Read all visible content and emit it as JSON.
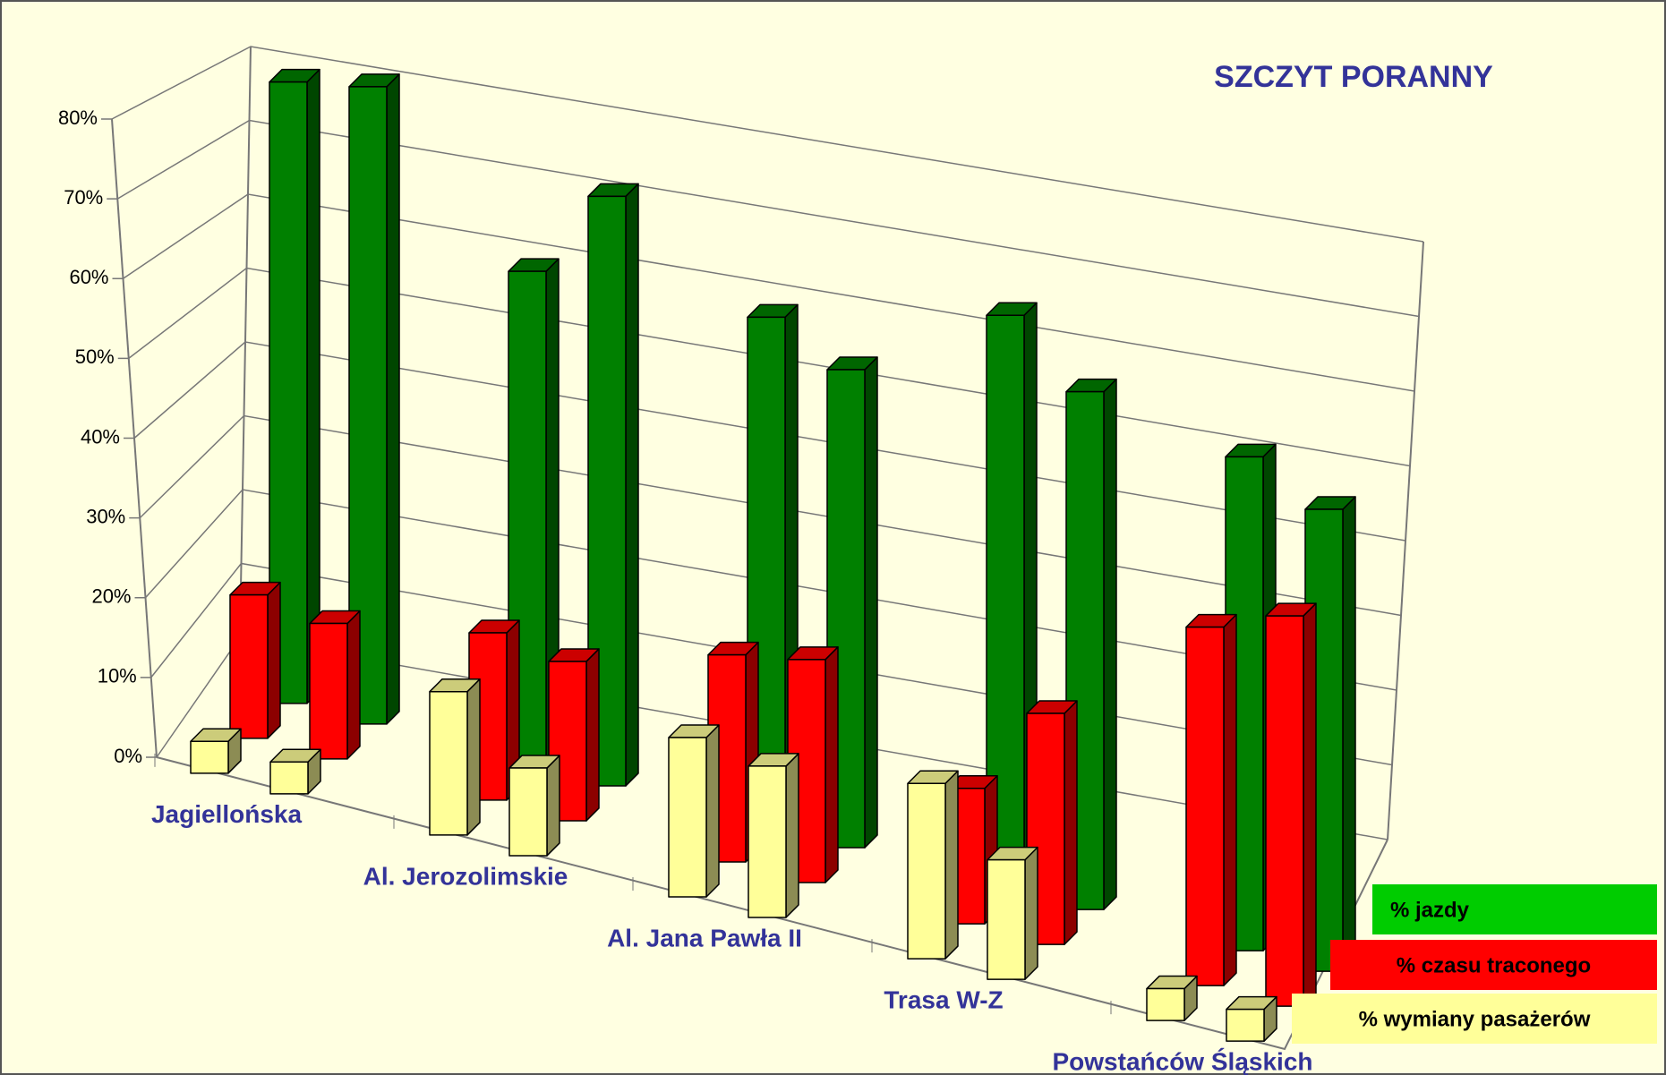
{
  "chart_data": {
    "type": "bar3d",
    "title": "SZCZYT PORANNY",
    "categories": [
      "Jagiellońska",
      null,
      "Al. Jerozolimskie",
      null,
      "Al. Jana Pawła II",
      null,
      "Trasa W-Z",
      null,
      "Powstańców Śląskich",
      null
    ],
    "series": [
      {
        "name": "% jazdy",
        "color": "#008000",
        "values": [
          78,
          80,
          62,
          74,
          64,
          60,
          72,
          65,
          62,
          58
        ]
      },
      {
        "name": "% czasu traconego",
        "color": "#ff0000",
        "values": [
          18,
          17,
          21,
          20,
          26,
          28,
          17,
          29,
          45,
          49
        ]
      },
      {
        "name": "% wymiany pasażerów",
        "color": "#ffff99",
        "values": [
          4,
          4,
          18,
          11,
          20,
          19,
          22,
          15,
          4,
          4
        ]
      }
    ],
    "ylim": [
      0,
      80
    ],
    "yticks": [
      {
        "value": 0,
        "label": "0%"
      },
      {
        "value": 10,
        "label": "10%"
      },
      {
        "value": 20,
        "label": "20%"
      },
      {
        "value": 30,
        "label": "30%"
      },
      {
        "value": 40,
        "label": "40%"
      },
      {
        "value": 50,
        "label": "50%"
      },
      {
        "value": 60,
        "label": "60%"
      },
      {
        "value": 70,
        "label": "70%"
      },
      {
        "value": 80,
        "label": "80%"
      }
    ],
    "grid": true
  }
}
